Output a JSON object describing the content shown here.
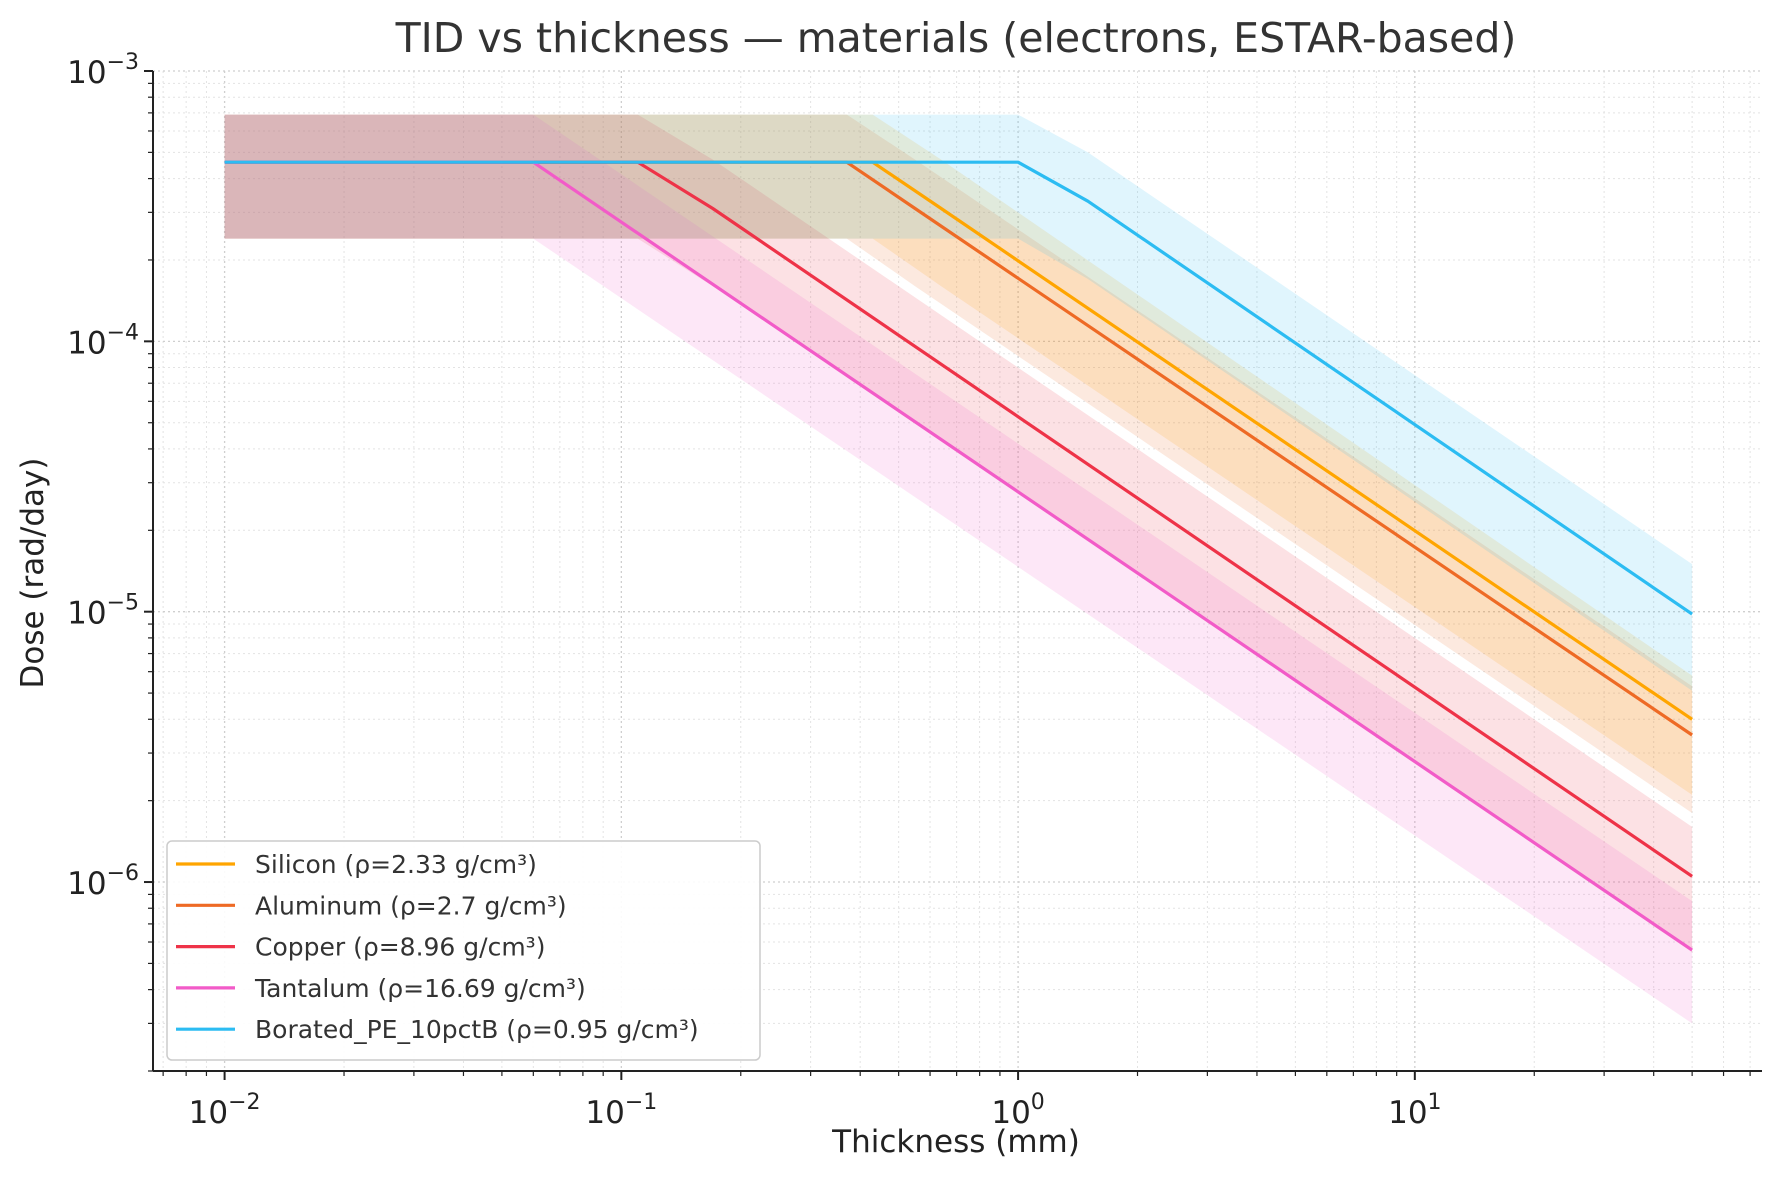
{
  "chart_data": {
    "type": "line",
    "title": "TID vs thickness — materials (electrons, ESTAR-based)",
    "xlabel": "Thickness (mm)",
    "ylabel": "Dose (rad/day)",
    "xscale": "log",
    "yscale": "log",
    "xlim": [
      0.0066,
      75
    ],
    "ylim": [
      2e-07,
      0.001
    ],
    "grid": true,
    "legend_position": "lower-left",
    "x_ticks": [
      {
        "base": "10",
        "exp": "−2",
        "value": 0.01
      },
      {
        "base": "10",
        "exp": "−1",
        "value": 0.1
      },
      {
        "base": "10",
        "exp": "0",
        "value": 1
      },
      {
        "base": "10",
        "exp": "1",
        "value": 10
      }
    ],
    "y_ticks": [
      {
        "base": "10",
        "exp": "−3",
        "value": 0.001
      },
      {
        "base": "10",
        "exp": "−4",
        "value": 0.0001
      },
      {
        "base": "10",
        "exp": "−5",
        "value": 1e-05
      },
      {
        "base": "10",
        "exp": "−6",
        "value": 1e-06
      }
    ],
    "series": [
      {
        "name": "Silicon (ρ=2.33 g/cm³)",
        "color": "#ffa500",
        "x": [
          0.01,
          0.43,
          0.64,
          50
        ],
        "y": [
          0.00046,
          0.00046,
          0.00031,
          4e-06
        ],
        "band_upper": [
          0.00069,
          0.00069,
          0.00047,
          5.8e-06
        ],
        "band_lower": [
          0.00024,
          0.00024,
          0.00016,
          2.1e-06
        ]
      },
      {
        "name": "Aluminum (ρ=2.7 g/cm³)",
        "color": "#ee6a25",
        "x": [
          0.01,
          0.37,
          0.55,
          50
        ],
        "y": [
          0.00046,
          0.00046,
          0.00031,
          3.5e-06
        ],
        "band_upper": [
          0.00069,
          0.00069,
          0.00047,
          5.3e-06
        ],
        "band_lower": [
          0.00024,
          0.00024,
          0.00016,
          1.8e-06
        ]
      },
      {
        "name": "Copper (ρ=8.96 g/cm³)",
        "color": "#ee3348",
        "x": [
          0.01,
          0.11,
          0.17,
          50
        ],
        "y": [
          0.00046,
          0.00046,
          0.00031,
          1.05e-06
        ],
        "band_upper": [
          0.00069,
          0.00069,
          0.00047,
          1.6e-06
        ],
        "band_lower": [
          0.00024,
          0.00024,
          0.00016,
          5.5e-07
        ]
      },
      {
        "name": "Tantalum (ρ=16.69 g/cm³)",
        "color": "#f25bc8",
        "x": [
          0.01,
          0.06,
          50
        ],
        "y": [
          0.00046,
          0.00046,
          5.6e-07
        ],
        "band_upper": [
          0.00069,
          0.00069,
          8.5e-07
        ],
        "band_lower": [
          0.00024,
          0.00024,
          3e-07
        ]
      },
      {
        "name": "Borated_PE_10pctB (ρ=0.95 g/cm³)",
        "color": "#2cbcf2",
        "x": [
          0.01,
          1.0,
          1.5,
          50
        ],
        "y": [
          0.00046,
          0.00046,
          0.00033,
          9.8e-06
        ],
        "band_upper": [
          0.00069,
          0.00069,
          0.0005,
          1.5e-05
        ],
        "band_lower": [
          0.00024,
          0.00024,
          0.00017,
          5.1e-06
        ]
      }
    ]
  }
}
